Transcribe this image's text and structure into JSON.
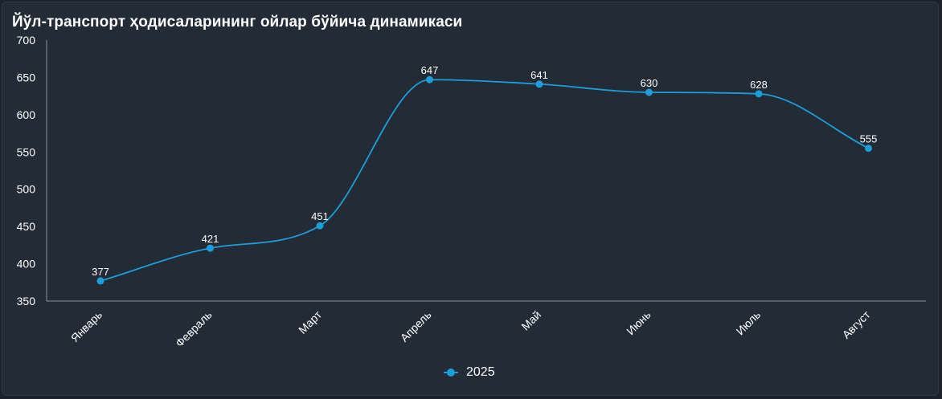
{
  "colors": {
    "series": "#1e9ed8",
    "axis": "#8a96a3",
    "text": "#ffffff"
  },
  "chart_data": {
    "type": "line",
    "title": "Йўл-транспорт ҳодисаларининг ойлар бўйича динамикаси",
    "categories": [
      "Январь",
      "Февраль",
      "Март",
      "Апрель",
      "Май",
      "Июнь",
      "Июль",
      "Август"
    ],
    "series": [
      {
        "name": "2025",
        "values": [
          377,
          421,
          451,
          647,
          641,
          630,
          628,
          555
        ]
      }
    ],
    "ylim": [
      350,
      700
    ],
    "yticks": [
      350,
      400,
      450,
      500,
      550,
      600,
      650,
      700
    ],
    "grid": false,
    "smooth": true,
    "data_labels": true,
    "legend": "bottom-center"
  }
}
